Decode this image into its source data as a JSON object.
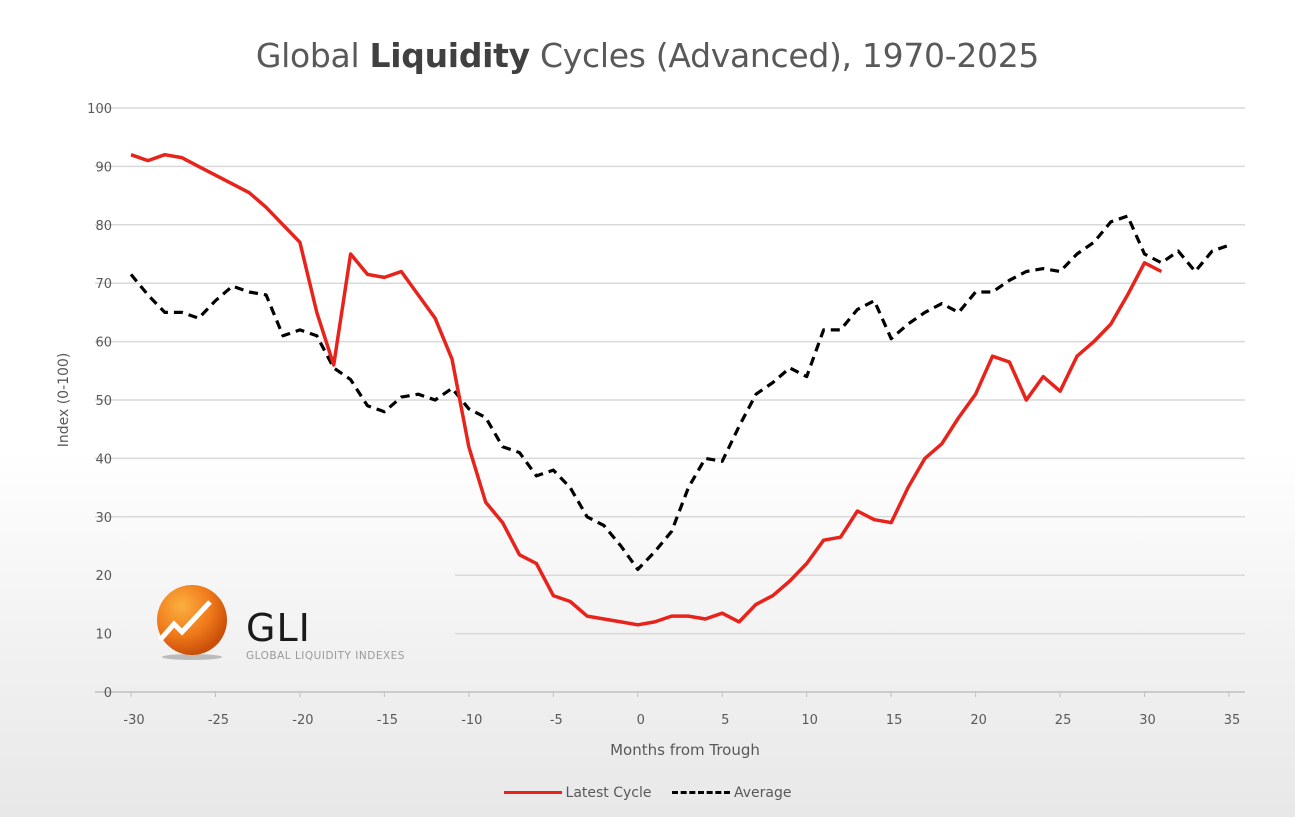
{
  "chart_data": {
    "type": "line",
    "title": {
      "prefix": "Global ",
      "bold": "Liquidity",
      "suffix": " Cycles (Advanced), 1970-2025"
    },
    "xlabel": "Months from Trough",
    "ylabel": "Index (0-100)",
    "xlim": [
      -30,
      35
    ],
    "ylim": [
      0,
      100
    ],
    "xticks": [
      -30,
      -25,
      -20,
      -15,
      -10,
      -5,
      0,
      5,
      10,
      15,
      20,
      25,
      30,
      35
    ],
    "yticks": [
      0,
      10,
      20,
      30,
      40,
      50,
      60,
      70,
      80,
      90,
      100
    ],
    "grid": "horizontal",
    "legend_position": "bottom",
    "series": [
      {
        "name": "Latest Cycle",
        "color": "#e8231c",
        "style": "solid",
        "x_start": -30,
        "values": [
          92,
          91,
          92,
          91.5,
          90,
          88.5,
          87,
          85.5,
          83,
          80,
          77,
          65,
          56,
          75,
          71.5,
          71,
          72,
          68,
          64,
          57,
          42,
          32.5,
          29,
          23.5,
          22,
          16.5,
          15.5,
          13,
          12.5,
          12,
          11.5,
          12,
          13,
          13,
          12.5,
          13.5,
          12,
          15,
          16.5,
          19,
          22,
          26,
          26.5,
          31,
          29.5,
          29,
          35,
          40,
          42.5,
          47,
          51,
          57.5,
          56.5,
          50,
          54,
          51.5,
          57.5,
          60,
          63,
          68,
          73.5,
          72
        ]
      },
      {
        "name": "Average",
        "color": "#000000",
        "style": "dashed",
        "x_start": -30,
        "values": [
          71.5,
          68,
          65,
          65,
          64,
          67,
          69.5,
          68.5,
          68,
          61,
          62,
          61,
          55.5,
          53.5,
          49,
          48,
          50.5,
          51,
          50,
          52,
          48.5,
          47,
          42,
          41,
          37,
          38,
          35,
          30,
          28.5,
          25,
          21,
          24,
          27.5,
          35,
          40,
          39.5,
          45.5,
          51,
          53,
          55.5,
          54,
          62,
          62,
          65.5,
          67,
          60.5,
          63,
          65,
          66.5,
          65,
          68.5,
          68.5,
          70.5,
          72,
          72.5,
          72,
          75,
          77,
          80.5,
          81.5,
          75,
          73.5,
          75.5,
          72,
          75.5,
          76.5
        ]
      }
    ]
  },
  "logo": {
    "name": "GLI",
    "tagline": "GLOBAL LIQUIDITY INDEXES",
    "color": "#f07a1a"
  }
}
